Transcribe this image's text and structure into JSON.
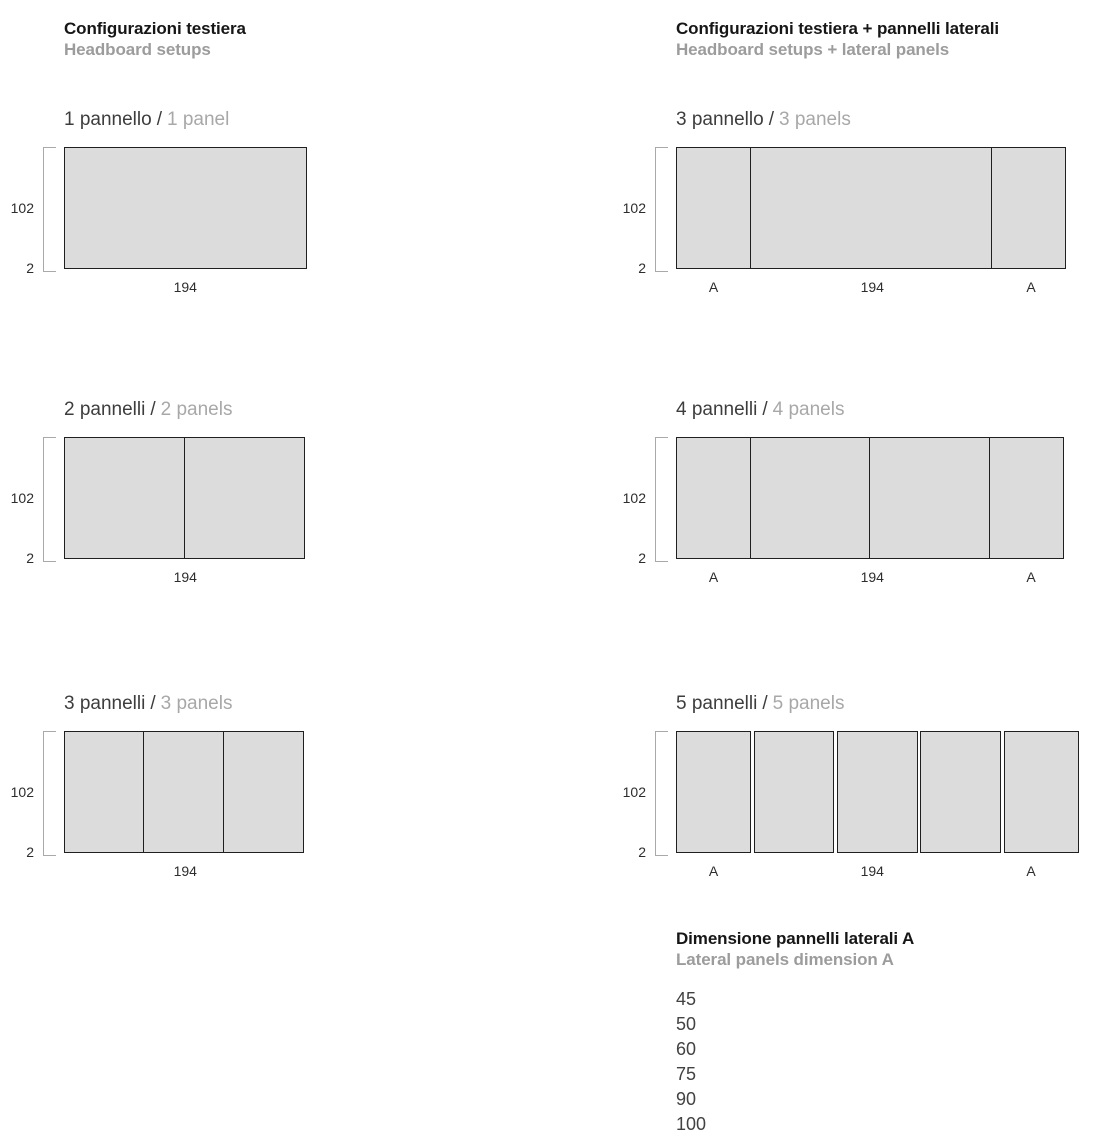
{
  "label_separator": "/",
  "colors": {
    "panel_fill": "#dcdcdc",
    "panel_border": "#202020",
    "bracket": "#a9a9a9",
    "title": "#161616",
    "subtitle": "#9c9c9c",
    "label_dark": "#3d3d3d",
    "label_gray": "#a8a8a8",
    "dimension_text": "#2d2d2d"
  },
  "columns": [
    {
      "title": "Configurazioni testiera",
      "subtitle": "Headboard setups",
      "diagrams": [
        {
          "label_it": "1 pannello",
          "label_en": "1 panel",
          "height_label": "102",
          "base_label": "2",
          "gapped": false,
          "panels": [
            {
              "cm": 194,
              "type": "headboard"
            }
          ],
          "bottom_labels": [
            {
              "cm": 194,
              "text": "194"
            }
          ]
        },
        {
          "label_it": "2 pannelli",
          "label_en": "2 panels",
          "height_label": "102",
          "base_label": "2",
          "gapped": false,
          "panels": [
            {
              "cm": 97,
              "type": "headboard"
            },
            {
              "cm": 97,
              "type": "headboard"
            }
          ],
          "bottom_labels": [
            {
              "cm": 194,
              "text": "194"
            }
          ]
        },
        {
          "label_it": "3 pannelli",
          "label_en": "3 panels",
          "height_label": "102",
          "base_label": "2",
          "gapped": false,
          "panels": [
            {
              "cm": 64.7,
              "type": "headboard"
            },
            {
              "cm": 64.6,
              "type": "headboard"
            },
            {
              "cm": 64.7,
              "type": "headboard"
            }
          ],
          "bottom_labels": [
            {
              "cm": 194,
              "text": "194"
            }
          ]
        }
      ]
    },
    {
      "title": "Configurazioni testiera + pannelli laterali",
      "subtitle": "Headboard setups + lateral panels",
      "diagrams": [
        {
          "label_it": "3 pannello",
          "label_en": "3 panels",
          "height_label": "102",
          "base_label": "2",
          "gapped": false,
          "panels": [
            {
              "cm": 60,
              "type": "lateral"
            },
            {
              "cm": 194,
              "type": "headboard"
            },
            {
              "cm": 60,
              "type": "lateral"
            }
          ],
          "bottom_labels": [
            {
              "cm": 60,
              "text": "A"
            },
            {
              "cm": 194,
              "text": "194"
            },
            {
              "cm": 60,
              "text": "A"
            }
          ]
        },
        {
          "label_it": "4 pannelli",
          "label_en": "4 panels",
          "height_label": "102",
          "base_label": "2",
          "gapped": false,
          "panels": [
            {
              "cm": 60,
              "type": "lateral"
            },
            {
              "cm": 97,
              "type": "headboard"
            },
            {
              "cm": 97,
              "type": "headboard"
            },
            {
              "cm": 60,
              "type": "lateral"
            }
          ],
          "bottom_labels": [
            {
              "cm": 60,
              "text": "A"
            },
            {
              "cm": 194,
              "text": "194"
            },
            {
              "cm": 60,
              "text": "A"
            }
          ]
        },
        {
          "label_it": "5 pannelli",
          "label_en": "5 panels",
          "height_label": "102",
          "base_label": "2",
          "gapped": true,
          "panels": [
            {
              "cm": 60,
              "type": "lateral"
            },
            {
              "cm": 64.7,
              "type": "headboard"
            },
            {
              "cm": 64.6,
              "type": "headboard"
            },
            {
              "cm": 64.7,
              "type": "headboard"
            },
            {
              "cm": 60,
              "type": "lateral"
            }
          ],
          "bottom_labels": [
            {
              "cm": 60,
              "text": "A"
            },
            {
              "cm": 194,
              "text": "194"
            },
            {
              "cm": 60,
              "text": "A"
            }
          ]
        }
      ],
      "dimension_section": {
        "title": "Dimensione pannelli laterali A",
        "subtitle": "Lateral panels dimension A",
        "values": [
          "45",
          "50",
          "60",
          "75",
          "90",
          "100"
        ]
      }
    }
  ]
}
